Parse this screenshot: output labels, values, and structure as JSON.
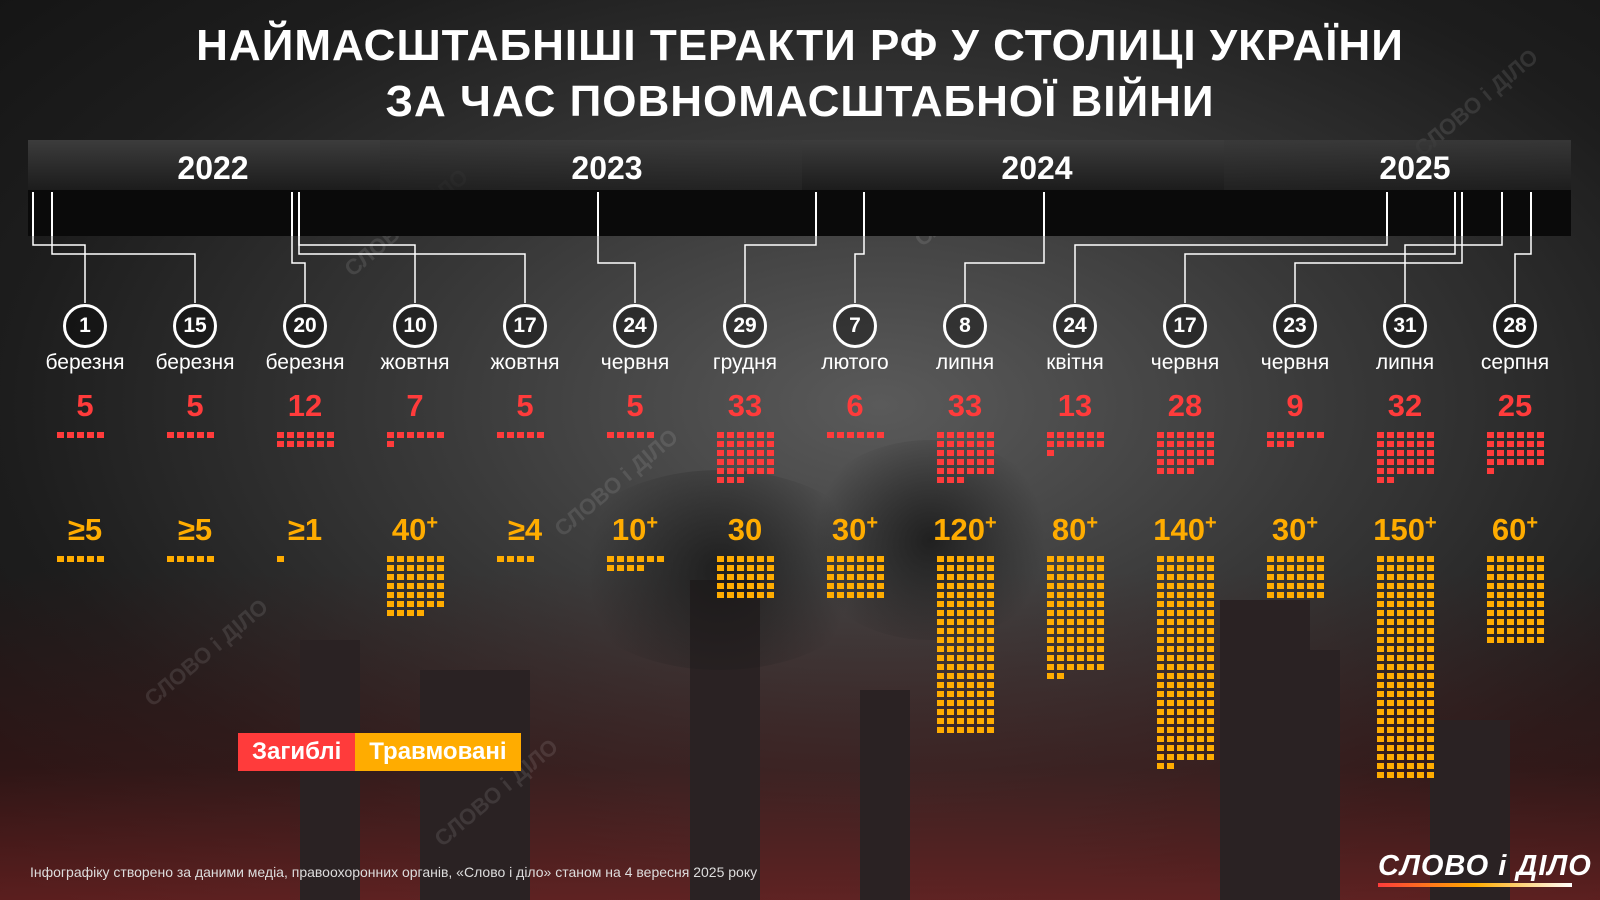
{
  "title_line1": "НАЙМАСШТАБНІШІ ТЕРАКТИ РФ У СТОЛИЦІ УКРАЇНИ",
  "title_line2": "ЗА ЧАС ПОВНОМАСШТАБНОЇ ВІЙНИ",
  "years": [
    "2022",
    "2023",
    "2024",
    "2025"
  ],
  "legend": {
    "dead": "Загиблі",
    "injured": "Травмовані"
  },
  "colors": {
    "dead": "#ff3b3b",
    "injured": "#ffac00"
  },
  "footer": "Інфографіку створено за даними медіа, правоохоронних органів, «Слово і діло» станом на 4 вересня 2025 року",
  "logo": "СЛОВО і ДІЛО",
  "watermark": "СЛОВО і ДІЛО",
  "chart_data": {
    "type": "table",
    "title": "НАЙМАСШТАБНІШІ ТЕРАКТИ РФ У СТОЛИЦІ УКРАЇНИ ЗА ЧАС ПОВНОМАСШТАБНОЇ ВІЙНИ",
    "series_names": [
      "Загиблі",
      "Травмовані"
    ],
    "events": [
      {
        "year": 2022,
        "day": "1",
        "month": "березня",
        "dead": 5,
        "injured_label": "≥5",
        "injured_prefix": "≥",
        "injured_value": "5",
        "injured_plus": false,
        "injured": 5
      },
      {
        "year": 2022,
        "day": "15",
        "month": "березня",
        "dead": 5,
        "injured_label": "≥5",
        "injured_prefix": "≥",
        "injured_value": "5",
        "injured_plus": false,
        "injured": 5
      },
      {
        "year": 2022,
        "day": "20",
        "month": "березня",
        "dead": 12,
        "injured_label": "≥1",
        "injured_prefix": "≥",
        "injured_value": "1",
        "injured_plus": false,
        "injured": 1
      },
      {
        "year": 2022,
        "day": "10",
        "month": "жовтня",
        "dead": 7,
        "injured_label": "40+",
        "injured_prefix": "",
        "injured_value": "40",
        "injured_plus": true,
        "injured": 40
      },
      {
        "year": 2022,
        "day": "17",
        "month": "жовтня",
        "dead": 5,
        "injured_label": "≥4",
        "injured_prefix": "≥",
        "injured_value": "4",
        "injured_plus": false,
        "injured": 4
      },
      {
        "year": 2023,
        "day": "24",
        "month": "червня",
        "dead": 5,
        "injured_label": "10+",
        "injured_prefix": "",
        "injured_value": "10",
        "injured_plus": true,
        "injured": 10
      },
      {
        "year": 2023,
        "day": "29",
        "month": "грудня",
        "dead": 33,
        "injured_label": "30",
        "injured_prefix": "",
        "injured_value": "30",
        "injured_plus": false,
        "injured": 30
      },
      {
        "year": 2024,
        "day": "7",
        "month": "лютого",
        "dead": 6,
        "injured_label": "30+",
        "injured_prefix": "",
        "injured_value": "30",
        "injured_plus": true,
        "injured": 30
      },
      {
        "year": 2024,
        "day": "8",
        "month": "липня",
        "dead": 33,
        "injured_label": "120+",
        "injured_prefix": "",
        "injured_value": "120",
        "injured_plus": true,
        "injured": 120
      },
      {
        "year": 2025,
        "day": "24",
        "month": "квітня",
        "dead": 13,
        "injured_label": "80+",
        "injured_prefix": "",
        "injured_value": "80",
        "injured_plus": true,
        "injured": 80
      },
      {
        "year": 2025,
        "day": "17",
        "month": "червня",
        "dead": 28,
        "injured_label": "140+",
        "injured_prefix": "",
        "injured_value": "140",
        "injured_plus": true,
        "injured": 140
      },
      {
        "year": 2025,
        "day": "23",
        "month": "червня",
        "dead": 9,
        "injured_label": "30+",
        "injured_prefix": "",
        "injured_value": "30",
        "injured_plus": true,
        "injured": 30
      },
      {
        "year": 2025,
        "day": "31",
        "month": "липня",
        "dead": 32,
        "injured_label": "150+",
        "injured_prefix": "",
        "injured_value": "150",
        "injured_plus": true,
        "injured": 150
      },
      {
        "year": 2025,
        "day": "28",
        "month": "серпня",
        "dead": 25,
        "injured_label": "60+",
        "injured_prefix": "",
        "injured_value": "60",
        "injured_plus": true,
        "injured": 60
      }
    ]
  }
}
